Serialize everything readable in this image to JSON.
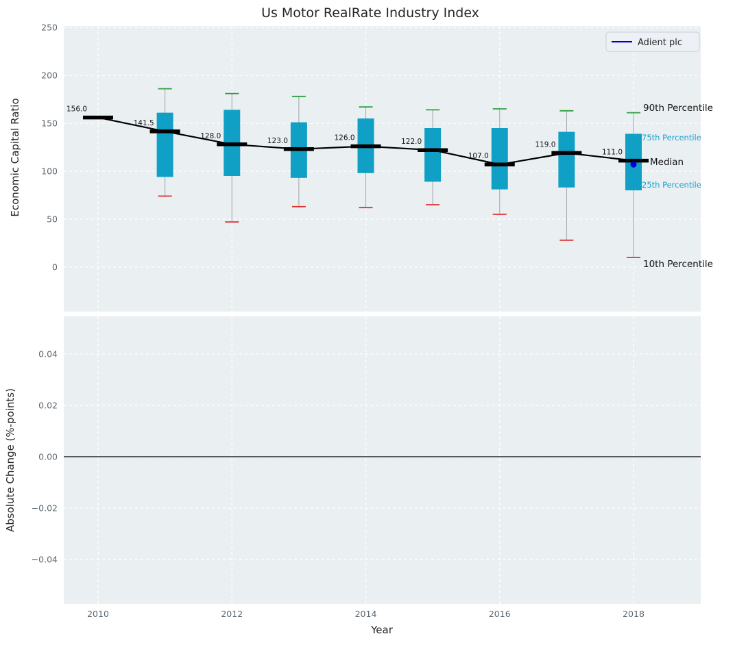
{
  "chart_data": {
    "type": "boxplot",
    "title": "Us Motor RealRate Industry Index",
    "xlabel": "Year",
    "xticks": [
      2010,
      2012,
      2014,
      2016,
      2018
    ],
    "legend_position": "top-right",
    "grid": true,
    "top_panel": {
      "ylabel": "Economic Capital Ratio",
      "yticks": [
        0,
        50,
        100,
        150,
        200,
        250
      ],
      "ylim": [
        -46,
        251
      ],
      "series_label": "Adient plc",
      "years": [
        2010,
        2011,
        2012,
        2013,
        2014,
        2015,
        2016,
        2017,
        2018
      ],
      "median": [
        156,
        141.5,
        128,
        123,
        126,
        122,
        107,
        119,
        111
      ],
      "median_labels": [
        "156.0",
        "141.5",
        "128.0",
        "123.0",
        "126.0",
        "122.0",
        "107.0",
        "119.0",
        "111.0"
      ],
      "q25": [
        null,
        94,
        95,
        93,
        98,
        89,
        81,
        83,
        80
      ],
      "q75": [
        null,
        161,
        164,
        151,
        155,
        145,
        145,
        141,
        139
      ],
      "p10": [
        null,
        74,
        47,
        63,
        62,
        65,
        55,
        28,
        10
      ],
      "p90": [
        null,
        186,
        181,
        178,
        167,
        164,
        165,
        163,
        161
      ],
      "adient_point": {
        "year": 2018,
        "value": 107
      },
      "annotations": {
        "p90": "90th Percentile",
        "p75": "75th Percentile",
        "median": "Median",
        "p25": "25th Percentile",
        "p10": "10th Percentile"
      }
    },
    "bottom_panel": {
      "ylabel": "Absolute Change (%-points)",
      "ytick_values": [
        0.04,
        0.02,
        0.0,
        -0.02,
        -0.04
      ],
      "ytick_labels": [
        "0.04",
        "0.02",
        "0.00",
        "−0.02",
        "−0.04"
      ],
      "zero_line": true
    },
    "colors": {
      "background": "#eaeff2",
      "grid": "#ffffff",
      "box": "#10a0c6",
      "p90_cap": "#2f9e41",
      "p10_cap": "#e03030",
      "median_line": "#000000",
      "adient": "#0000cd",
      "annotation_cyan": "#17a2cf"
    }
  }
}
